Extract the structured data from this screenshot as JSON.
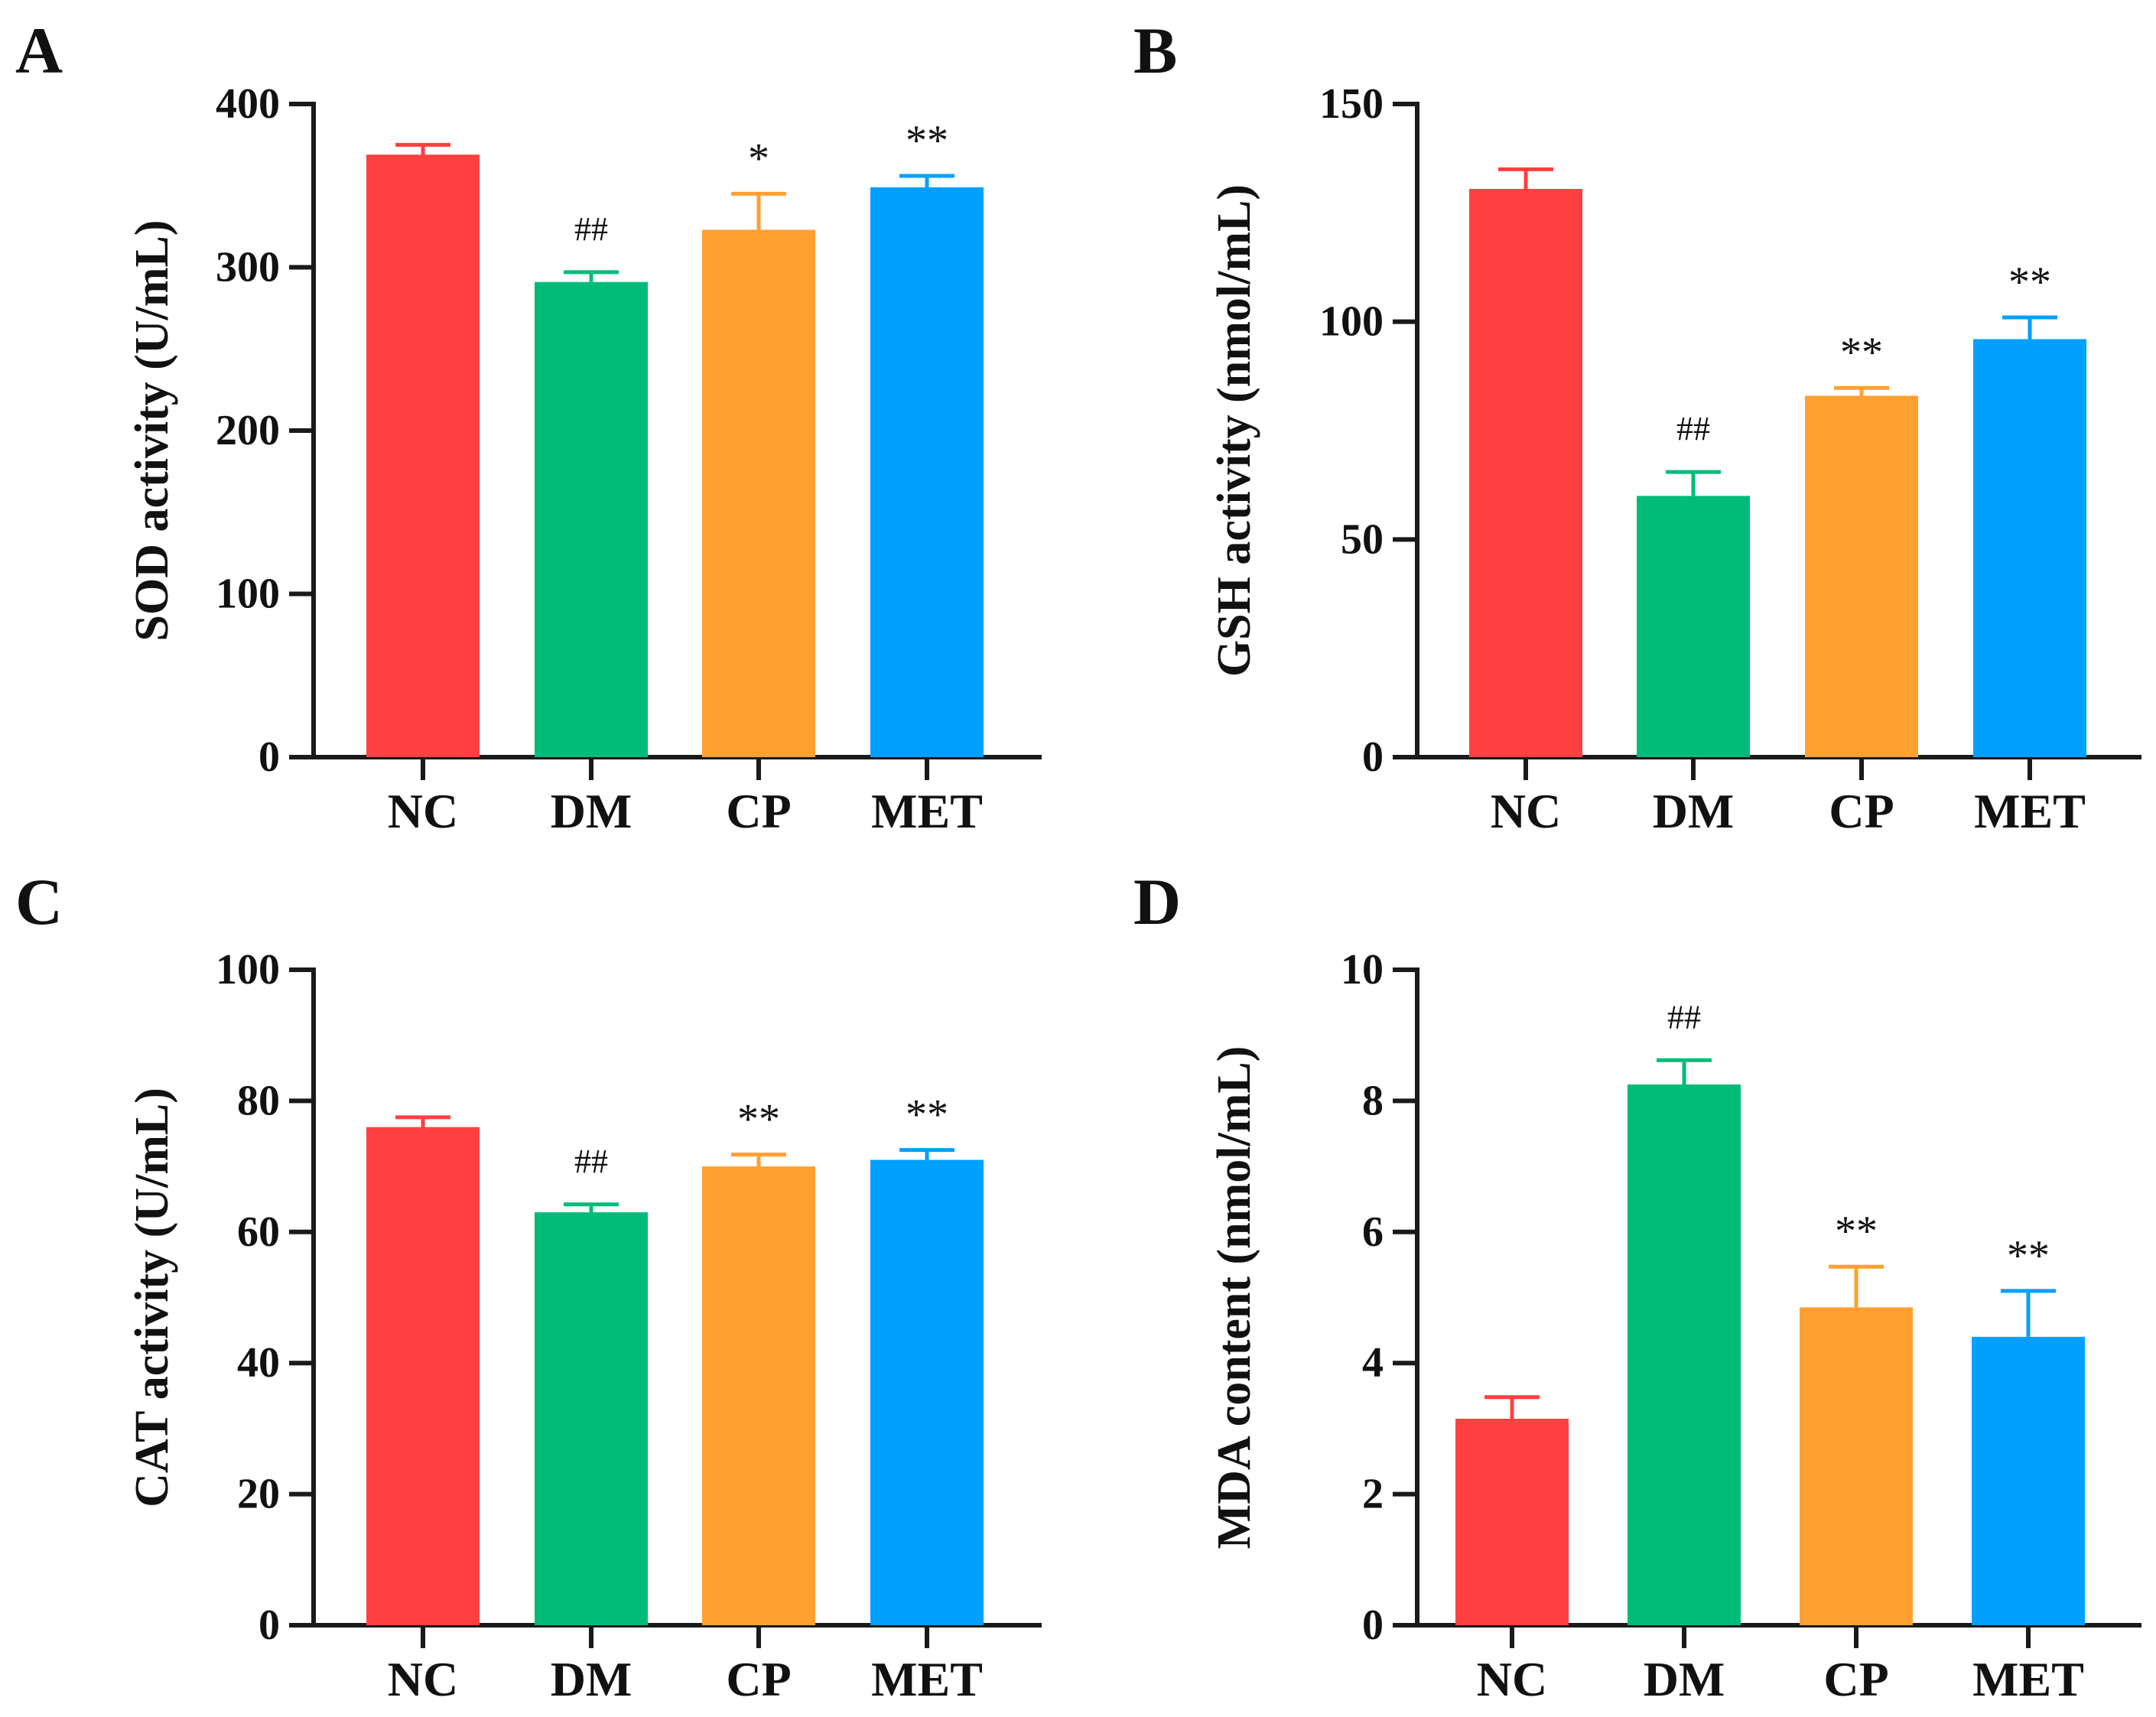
{
  "chart_data": [
    {
      "panel": "A",
      "type": "bar",
      "categories": [
        "NC",
        "DM",
        "CP",
        "MET"
      ],
      "values": [
        369,
        291,
        323,
        349
      ],
      "errors": [
        6,
        6,
        22,
        7
      ],
      "significance": [
        "",
        "##",
        "*",
        "**"
      ],
      "ylabel": "SOD activity (U/mL)",
      "ylim": [
        0,
        400
      ],
      "yticks": [
        "0",
        "100",
        "200",
        "300",
        "400"
      ],
      "yticks_values": [
        0,
        100,
        200,
        300,
        400
      ],
      "colors": [
        "#ff4040",
        "#00bc78",
        "#ffa030",
        "#00a0ff"
      ]
    },
    {
      "panel": "B",
      "type": "bar",
      "categories": [
        "NC",
        "DM",
        "CP",
        "MET"
      ],
      "values": [
        130.5,
        60,
        83,
        96
      ],
      "errors": [
        4.5,
        5.5,
        1.8,
        5
      ],
      "significance": [
        "",
        "##",
        "**",
        "**"
      ],
      "ylabel": "GSH activity (nmol/mL)",
      "ylim": [
        0,
        150
      ],
      "yticks": [
        "0",
        "50",
        "100",
        "150"
      ],
      "yticks_values": [
        0,
        50,
        100,
        150
      ],
      "colors": [
        "#ff4040",
        "#00bc78",
        "#ffa030",
        "#00a0ff"
      ]
    },
    {
      "panel": "C",
      "type": "bar",
      "categories": [
        "NC",
        "DM",
        "CP",
        "MET"
      ],
      "values": [
        76,
        63,
        70,
        71
      ],
      "errors": [
        1.5,
        1.2,
        1.8,
        1.5
      ],
      "significance": [
        "",
        "##",
        "**",
        "**"
      ],
      "ylabel": "CAT activity (U/mL)",
      "ylim": [
        0,
        100
      ],
      "yticks": [
        "0",
        "20",
        "40",
        "60",
        "80",
        "100"
      ],
      "yticks_values": [
        0,
        20,
        40,
        60,
        80,
        100
      ],
      "colors": [
        "#ff4040",
        "#00bc78",
        "#ffa030",
        "#00a0ff"
      ]
    },
    {
      "panel": "D",
      "type": "bar",
      "categories": [
        "NC",
        "DM",
        "CP",
        "MET"
      ],
      "values": [
        3.15,
        8.25,
        4.85,
        4.4
      ],
      "errors": [
        0.33,
        0.37,
        0.62,
        0.7
      ],
      "significance": [
        "",
        "##",
        "**",
        "**"
      ],
      "ylabel": "MDA content (nmol/mL)",
      "ylim": [
        0,
        10
      ],
      "yticks": [
        "0",
        "2",
        "4",
        "6",
        "8",
        "10"
      ],
      "yticks_values": [
        0,
        2,
        4,
        6,
        8,
        10
      ],
      "colors": [
        "#ff4040",
        "#00bc78",
        "#ffa030",
        "#00a0ff"
      ]
    }
  ]
}
